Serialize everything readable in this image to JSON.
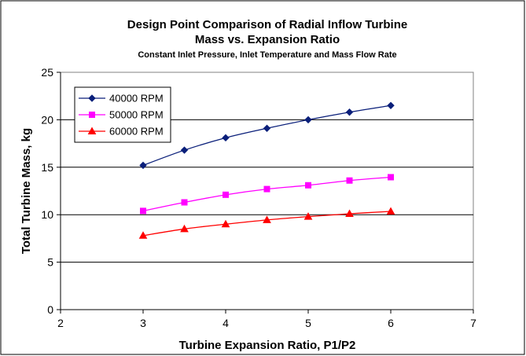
{
  "chart_data": {
    "type": "line",
    "title": "Design Point Comparison of Radial Inflow Turbine",
    "title_line2": "Mass vs. Expansion Ratio",
    "subtitle": "Constant Inlet Pressure, Inlet Temperature and Mass Flow Rate",
    "xlabel": "Turbine Expansion Ratio, P1/P2",
    "ylabel": "Total Turbine Mass, kg",
    "xlim": [
      2,
      7
    ],
    "ylim": [
      0,
      25
    ],
    "xticks": [
      2,
      3,
      4,
      5,
      6,
      7
    ],
    "yticks": [
      0,
      5,
      10,
      15,
      20,
      25
    ],
    "grid": "horizontal",
    "legend": "top-left",
    "x": [
      3,
      3.5,
      4,
      4.5,
      5,
      5.5,
      6
    ],
    "series": [
      {
        "name": "40000 RPM",
        "color": "#0a1f7a",
        "marker": "diamond",
        "values": [
          15.2,
          16.8,
          18.1,
          19.1,
          20.0,
          20.8,
          21.5
        ]
      },
      {
        "name": "50000 RPM",
        "color": "#ff00ff",
        "marker": "square",
        "values": [
          10.4,
          11.3,
          12.1,
          12.7,
          13.1,
          13.6,
          13.95
        ]
      },
      {
        "name": "60000 RPM",
        "color": "#ff0000",
        "marker": "triangle",
        "values": [
          7.8,
          8.5,
          9.0,
          9.45,
          9.8,
          10.1,
          10.35
        ]
      }
    ]
  }
}
